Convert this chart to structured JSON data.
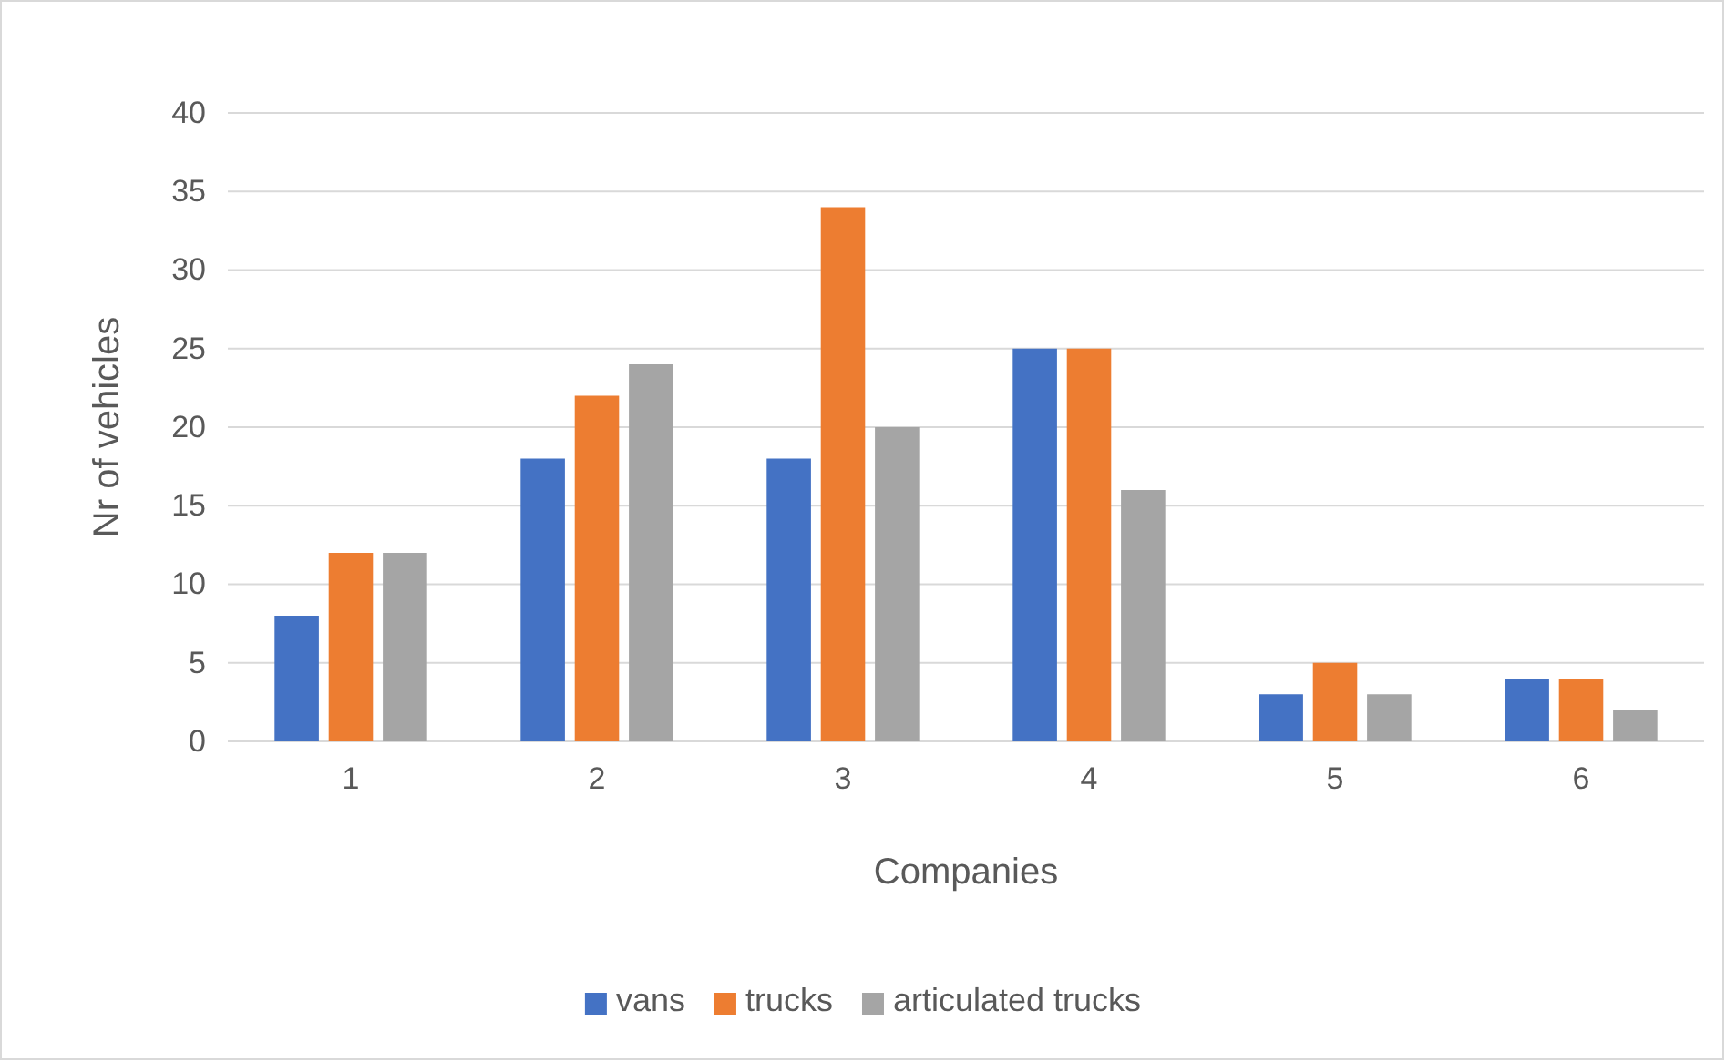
{
  "chart_data": {
    "type": "bar",
    "categories": [
      "1",
      "2",
      "3",
      "4",
      "5",
      "6"
    ],
    "series": [
      {
        "name": "vans",
        "color": "#4472c4",
        "values": [
          8,
          18,
          18,
          25,
          3,
          4
        ]
      },
      {
        "name": "trucks",
        "color": "#ed7d31",
        "values": [
          12,
          22,
          34,
          25,
          5,
          4
        ]
      },
      {
        "name": "articulated trucks",
        "color": "#a5a5a5",
        "values": [
          12,
          24,
          20,
          16,
          3,
          2
        ]
      }
    ],
    "xlabel": "Companies",
    "ylabel": "Nr of vehicles",
    "ylim": [
      0,
      40
    ],
    "yticks": [
      0,
      5,
      10,
      15,
      20,
      25,
      30,
      35,
      40
    ],
    "grid": "y",
    "legend": "bottom"
  }
}
